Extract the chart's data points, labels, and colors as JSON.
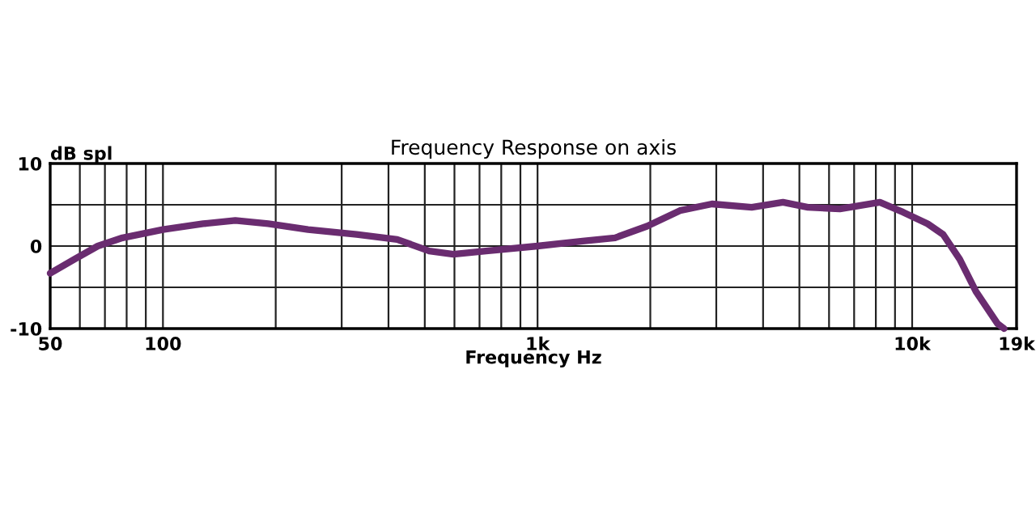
{
  "chart_data": {
    "type": "line",
    "title": "Frequency Response on axis",
    "xlabel": "Frequency Hz",
    "ylabel": "dB spl",
    "log": "x",
    "x": [
      50,
      58,
      67,
      78,
      100,
      128,
      156,
      191,
      244,
      329,
      422,
      514,
      596,
      728,
      1000,
      1320,
      1610,
      1960,
      2400,
      2920,
      3730,
      4520,
      5270,
      6410,
      8200,
      9460,
      11000,
      12100,
      13400,
      14800,
      16900,
      17600
    ],
    "series": [
      {
        "color": "#6a2c70",
        "values": [
          -3.3,
          -1.6,
          0,
          1.0,
          2.0,
          2.7,
          3.1,
          2.7,
          2.0,
          1.4,
          0.8,
          -0.6,
          -1.0,
          -0.6,
          0,
          0.6,
          1.0,
          2.4,
          4.3,
          5.1,
          4.7,
          5.3,
          4.7,
          4.5,
          5.3,
          4.1,
          2.7,
          1.4,
          -1.6,
          -5.5,
          -9.4,
          -10
        ]
      }
    ],
    "xlim": [
      50,
      19000
    ],
    "xticks": [
      50,
      100,
      {
        "value": 1000,
        "label": "1k"
      },
      {
        "value": 10000,
        "label": "10k"
      },
      {
        "value": 19000,
        "label": "19k"
      }
    ],
    "ylim": [
      -10,
      10
    ],
    "yticks": [
      {
        "value": -10,
        "label": "-10"
      },
      {
        "value": -5,
        "label": null
      },
      0,
      {
        "value": 5,
        "label": null
      },
      10
    ],
    "grid": true,
    "line_style": "solid",
    "marker": "none"
  }
}
